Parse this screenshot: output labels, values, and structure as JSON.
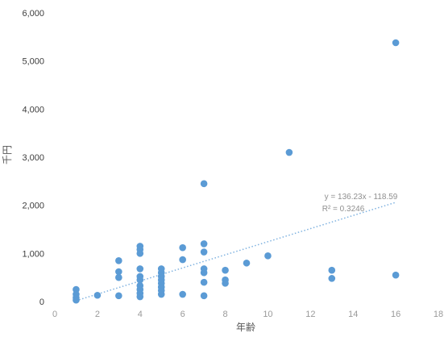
{
  "chart_data": {
    "type": "scatter",
    "title": "",
    "xlabel": "年齢",
    "ylabel": "千円",
    "xlim": [
      0,
      18
    ],
    "ylim": [
      0,
      6000
    ],
    "x_ticks": [
      "0",
      "2",
      "4",
      "6",
      "8",
      "10",
      "12",
      "14",
      "16",
      "18"
    ],
    "y_ticks": [
      "0",
      "1,000",
      "2,000",
      "3,000",
      "4,000",
      "5,000",
      "6,000"
    ],
    "grid": false,
    "legend": "none",
    "colors": {
      "points": "#5b9bd5",
      "trendline": "#7fb2e0"
    },
    "trendline": {
      "type": "linear",
      "slope": 136.23,
      "intercept": -118.59,
      "x_range": [
        1,
        16
      ],
      "equation": "y = 136.23x - 118.59",
      "r2": "R² = 0.3246"
    },
    "points": [
      {
        "x": 1,
        "y": 250
      },
      {
        "x": 1,
        "y": 150
      },
      {
        "x": 1,
        "y": 80
      },
      {
        "x": 1,
        "y": 30
      },
      {
        "x": 2,
        "y": 130
      },
      {
        "x": 3,
        "y": 850
      },
      {
        "x": 3,
        "y": 620
      },
      {
        "x": 3,
        "y": 500
      },
      {
        "x": 3,
        "y": 120
      },
      {
        "x": 4,
        "y": 1150
      },
      {
        "x": 4,
        "y": 1080
      },
      {
        "x": 4,
        "y": 1000
      },
      {
        "x": 4,
        "y": 680
      },
      {
        "x": 4,
        "y": 520
      },
      {
        "x": 4,
        "y": 450
      },
      {
        "x": 4,
        "y": 330
      },
      {
        "x": 4,
        "y": 250
      },
      {
        "x": 4,
        "y": 170
      },
      {
        "x": 4,
        "y": 100
      },
      {
        "x": 5,
        "y": 680
      },
      {
        "x": 5,
        "y": 600
      },
      {
        "x": 5,
        "y": 520
      },
      {
        "x": 5,
        "y": 450
      },
      {
        "x": 5,
        "y": 380
      },
      {
        "x": 5,
        "y": 300
      },
      {
        "x": 5,
        "y": 230
      },
      {
        "x": 5,
        "y": 150
      },
      {
        "x": 6,
        "y": 1120
      },
      {
        "x": 6,
        "y": 870
      },
      {
        "x": 6,
        "y": 150
      },
      {
        "x": 7,
        "y": 2450
      },
      {
        "x": 7,
        "y": 1200
      },
      {
        "x": 7,
        "y": 1030
      },
      {
        "x": 7,
        "y": 680
      },
      {
        "x": 7,
        "y": 600
      },
      {
        "x": 7,
        "y": 400
      },
      {
        "x": 7,
        "y": 120
      },
      {
        "x": 8,
        "y": 650
      },
      {
        "x": 8,
        "y": 450
      },
      {
        "x": 8,
        "y": 380
      },
      {
        "x": 9,
        "y": 800
      },
      {
        "x": 10,
        "y": 950
      },
      {
        "x": 11,
        "y": 3100
      },
      {
        "x": 13,
        "y": 650
      },
      {
        "x": 13,
        "y": 480
      },
      {
        "x": 16,
        "y": 5380
      },
      {
        "x": 16,
        "y": 550
      }
    ]
  }
}
